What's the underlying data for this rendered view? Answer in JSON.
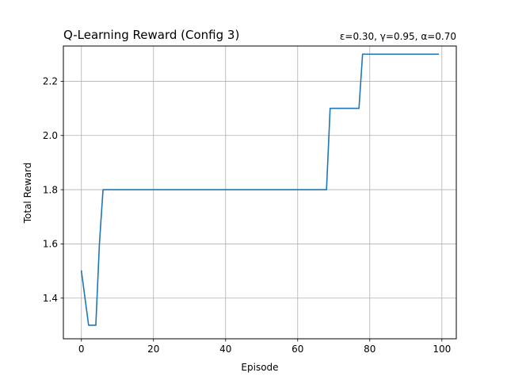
{
  "chart_data": {
    "type": "line",
    "title": "Q-Learning Reward (Config 3)",
    "subtitle": "ε=0.30, γ=0.95, α=0.70",
    "xlabel": "Episode",
    "ylabel": "Total Reward",
    "xlim": [
      -5,
      104
    ],
    "ylim": [
      1.25,
      2.33
    ],
    "xticks": [
      0,
      20,
      40,
      60,
      80,
      100
    ],
    "yticks": [
      1.4,
      1.6,
      1.8,
      2.0,
      2.2
    ],
    "xtick_labels": [
      "0",
      "20",
      "40",
      "60",
      "80",
      "100"
    ],
    "ytick_labels": [
      "1.4",
      "1.6",
      "1.8",
      "2.0",
      "2.2"
    ],
    "grid": true,
    "series_color": "#1f77b4",
    "series": [
      {
        "x": [
          0,
          1,
          2,
          3,
          4,
          5,
          6,
          68,
          69,
          77,
          78,
          99
        ],
        "y": [
          1.5,
          1.4,
          1.3,
          1.3,
          1.3,
          1.6,
          1.8,
          1.8,
          2.1,
          2.1,
          2.3,
          2.3
        ]
      }
    ]
  }
}
